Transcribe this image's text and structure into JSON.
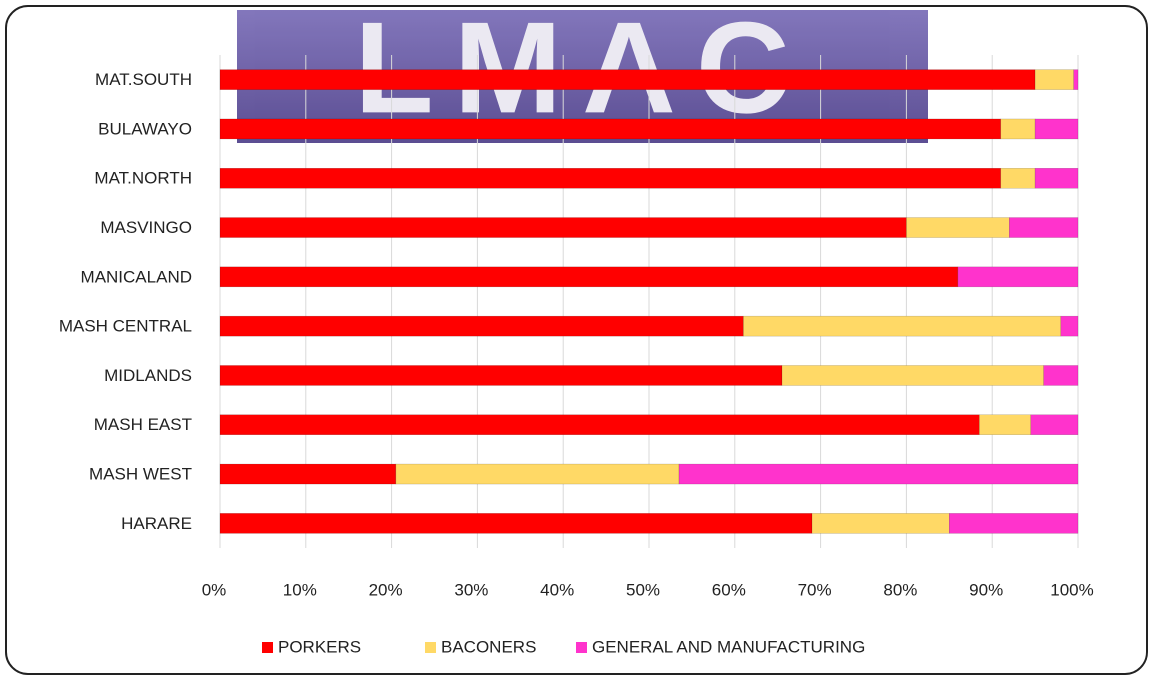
{
  "logo": "LMAC",
  "chart_data": {
    "type": "stacked_bar_horizontal",
    "categories": [
      "MAT.SOUTH",
      "BULAWAYO",
      "MAT.NORTH",
      "MASVINGO",
      "MANICALAND",
      "MASH CENTRAL",
      "MIDLANDS",
      "MASH EAST",
      "MASH WEST",
      "HARARE"
    ],
    "series": [
      {
        "name": "PORKERS",
        "color": "#ff0000",
        "values": [
          95,
          91,
          91,
          80,
          86,
          61,
          65.5,
          88.5,
          20.5,
          69
        ]
      },
      {
        "name": "BACONERS",
        "color": "#ffd966",
        "values": [
          4.5,
          4,
          4,
          12,
          0,
          37,
          30.5,
          6,
          33,
          16
        ]
      },
      {
        "name": "GENERAL AND MANUFACTURING",
        "color": "#ff33cc",
        "values": [
          0.5,
          5,
          5,
          8,
          14,
          2,
          4,
          5.5,
          46.5,
          15
        ]
      }
    ],
    "xlim": [
      0,
      100
    ],
    "xticks": [
      {
        "value": 0,
        "label": "0%"
      },
      {
        "value": 10,
        "label": "10%"
      },
      {
        "value": 20,
        "label": "20%"
      },
      {
        "value": 30,
        "label": "30%"
      },
      {
        "value": 40,
        "label": "40%"
      },
      {
        "value": 50,
        "label": "50%"
      },
      {
        "value": 60,
        "label": "60%"
      },
      {
        "value": 70,
        "label": "70%"
      },
      {
        "value": 80,
        "label": "80%"
      },
      {
        "value": 90,
        "label": "90%"
      },
      {
        "value": 100,
        "label": "100%"
      }
    ],
    "grid": true,
    "legend": "bottom"
  }
}
